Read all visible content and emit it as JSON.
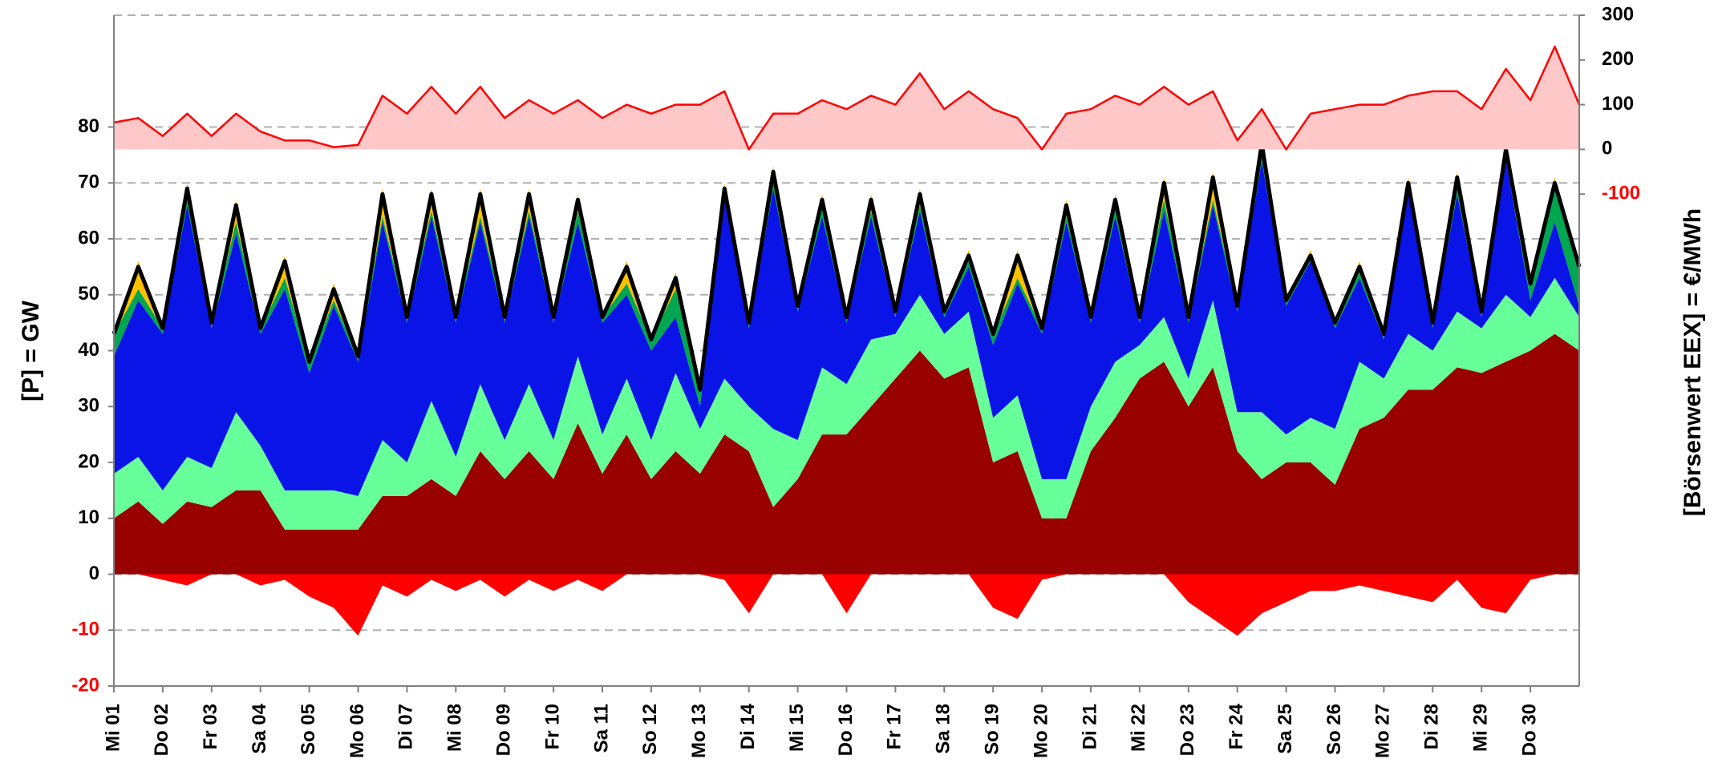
{
  "chart_data": {
    "type": "area",
    "y_axis_label": "[P]  =  GW",
    "y2_axis_label": "[Börsenwert  EEX]  =  €/MWh",
    "x": [
      0,
      0.5,
      1,
      1.5,
      2,
      2.5,
      3,
      3.5,
      4,
      4.5,
      5,
      5.5,
      6,
      6.5,
      7,
      7.5,
      8,
      8.5,
      9,
      9.5,
      10,
      10.5,
      11,
      11.5,
      12,
      12.5,
      13,
      13.5,
      14,
      14.5,
      15,
      15.5,
      16,
      16.5,
      17,
      17.5,
      18,
      18.5,
      19,
      19.5,
      20,
      20.5,
      21,
      21.5,
      22,
      22.5,
      23,
      23.5,
      24,
      24.5,
      25,
      25.5,
      26,
      26.5,
      27,
      27.5,
      28,
      28.5,
      29,
      29.5,
      30
    ],
    "xlim": [
      0,
      30
    ],
    "xticks": [
      {
        "value": 0,
        "label": "Mi 01"
      },
      {
        "value": 1,
        "label": "Do 02"
      },
      {
        "value": 2,
        "label": "Fr 03"
      },
      {
        "value": 3,
        "label": "Sa 04"
      },
      {
        "value": 4,
        "label": "So 05"
      },
      {
        "value": 5,
        "label": "Mo 06"
      },
      {
        "value": 6,
        "label": "Di 07"
      },
      {
        "value": 7,
        "label": "Mi 08"
      },
      {
        "value": 8,
        "label": "Do 09"
      },
      {
        "value": 9,
        "label": "Fr 10"
      },
      {
        "value": 10,
        "label": "Sa 11"
      },
      {
        "value": 11,
        "label": "So 12"
      },
      {
        "value": 12,
        "label": "Mo 13"
      },
      {
        "value": 13,
        "label": "Di 14"
      },
      {
        "value": 14,
        "label": "Mi 15"
      },
      {
        "value": 15,
        "label": "Do 16"
      },
      {
        "value": 16,
        "label": "Fr 17"
      },
      {
        "value": 17,
        "label": "Sa 18"
      },
      {
        "value": 18,
        "label": "So 19"
      },
      {
        "value": 19,
        "label": "Mo 20"
      },
      {
        "value": 20,
        "label": "Di 21"
      },
      {
        "value": 21,
        "label": "Mi 22"
      },
      {
        "value": 22,
        "label": "Do 23"
      },
      {
        "value": 23,
        "label": "Fr 24"
      },
      {
        "value": 24,
        "label": "Sa 25"
      },
      {
        "value": 25,
        "label": "So 26"
      },
      {
        "value": 26,
        "label": "Mo 27"
      },
      {
        "value": 27,
        "label": "Di 28"
      },
      {
        "value": 28,
        "label": "Mi 29"
      },
      {
        "value": 29,
        "label": "Do 30"
      }
    ],
    "ylim": [
      -20,
      100
    ],
    "yticks": [
      -20,
      -10,
      0,
      10,
      20,
      30,
      40,
      50,
      60,
      70,
      80
    ],
    "y2lim": [
      -1200,
      300
    ],
    "y2ticks": [
      -100,
      0,
      100,
      200,
      300
    ],
    "negative_tick_color": "#ff0000",
    "grid": true,
    "series": [
      {
        "type": "stacked_area",
        "color": "#990000",
        "values": [
          10,
          13,
          9,
          13,
          12,
          15,
          15,
          8,
          8,
          8,
          8,
          14,
          14,
          17,
          14,
          22,
          17,
          22,
          17,
          27,
          18,
          25,
          17,
          22,
          18,
          25,
          22,
          12,
          17,
          25,
          25,
          30,
          35,
          40,
          35,
          37,
          20,
          22,
          10,
          10,
          22,
          28,
          35,
          38,
          30,
          37,
          22,
          17,
          20,
          20,
          16,
          26,
          28,
          33,
          33,
          37,
          36,
          38,
          40,
          43,
          40
        ]
      },
      {
        "type": "stacked_area",
        "color": "#66ff99",
        "values": [
          8,
          8,
          6,
          8,
          7,
          14,
          8,
          7,
          7,
          7,
          6,
          10,
          6,
          14,
          7,
          12,
          7,
          12,
          7,
          12,
          7,
          10,
          7,
          14,
          8,
          10,
          8,
          14,
          7,
          12,
          9,
          12,
          8,
          10,
          8,
          10,
          8,
          10,
          7,
          7,
          8,
          10,
          6,
          8,
          5,
          12,
          7,
          12,
          5,
          8,
          10,
          12,
          7,
          10,
          7,
          10,
          8,
          12,
          6,
          10,
          6
        ]
      },
      {
        "type": "stacked_area",
        "color": "#0a14e6",
        "values": [
          21,
          28,
          28,
          45,
          25,
          32,
          20,
          36,
          21,
          33,
          24,
          39,
          25,
          33,
          24,
          29,
          21,
          30,
          21,
          24,
          20,
          15,
          16,
          10,
          4,
          32,
          14,
          43,
          23,
          27,
          11,
          22,
          3,
          15,
          3,
          8,
          13,
          20,
          26,
          46,
          15,
          26,
          4,
          19,
          10,
          17,
          18,
          45,
          23,
          28,
          18,
          15,
          7,
          26,
          4,
          21,
          2,
          24,
          3,
          10,
          2
        ]
      },
      {
        "type": "stacked_area",
        "color": "#00a650",
        "values": [
          4,
          2,
          1,
          1,
          1,
          2,
          1,
          2,
          2,
          1,
          1,
          1,
          1,
          1,
          1,
          1,
          1,
          1,
          1,
          2,
          1,
          2,
          2,
          5,
          3,
          2,
          1,
          1,
          1,
          2,
          1,
          1,
          1,
          1,
          1,
          1,
          2,
          1,
          1,
          1,
          1,
          2,
          1,
          2,
          1,
          1,
          1,
          1,
          1,
          1,
          1,
          1,
          1,
          1,
          1,
          2,
          1,
          1,
          3,
          6,
          7
        ]
      },
      {
        "type": "stacked_area",
        "color": "#ffc000",
        "values": [
          0,
          5,
          0,
          3,
          0,
          4,
          0,
          4,
          0,
          3,
          0,
          5,
          0,
          4,
          0,
          5,
          0,
          4,
          0,
          3,
          0,
          4,
          0,
          3,
          0,
          1,
          0,
          3,
          0,
          2,
          0,
          3,
          0,
          3,
          0,
          2,
          0,
          5,
          0,
          3,
          0,
          2,
          0,
          4,
          0,
          5,
          0,
          3,
          0,
          1,
          0,
          2,
          0,
          1,
          0,
          2,
          0,
          2,
          0,
          2,
          0
        ]
      },
      {
        "type": "area",
        "color": "#ff0000",
        "values": [
          0,
          0,
          -1,
          -2,
          0,
          0,
          -2,
          -1,
          -4,
          -6,
          -11,
          -2,
          -4,
          -1,
          -3,
          -1,
          -4,
          -1,
          -3,
          -1,
          -3,
          0,
          0,
          0,
          0,
          -1,
          -7,
          0,
          0,
          0,
          -7,
          0,
          0,
          0,
          0,
          0,
          -6,
          -8,
          -1,
          0,
          0,
          0,
          0,
          0,
          -5,
          -8,
          -11,
          -7,
          -5,
          -3,
          -3,
          -2,
          -3,
          -4,
          -5,
          -1,
          -6,
          -7,
          -1,
          0,
          0
        ]
      },
      {
        "type": "line",
        "color": "#000000",
        "values": [
          43,
          55,
          44,
          69,
          45,
          66,
          44,
          56,
          38,
          51,
          39,
          68,
          46,
          68,
          46,
          68,
          46,
          68,
          46,
          67,
          46,
          55,
          42,
          53,
          33,
          69,
          45,
          72,
          48,
          67,
          46,
          67,
          47,
          68,
          47,
          57,
          43,
          57,
          44,
          66,
          46,
          67,
          46,
          70,
          46,
          71,
          48,
          77,
          49,
          57,
          45,
          55,
          43,
          70,
          45,
          71,
          47,
          76,
          52,
          70,
          55
        ]
      },
      {
        "type": "line",
        "axis": "y2",
        "color": "#ff0000",
        "fill": "#ffc8c8",
        "values": [
          60,
          70,
          30,
          80,
          30,
          80,
          40,
          20,
          20,
          5,
          10,
          120,
          80,
          140,
          80,
          140,
          70,
          110,
          80,
          110,
          70,
          100,
          80,
          100,
          100,
          130,
          0,
          80,
          80,
          110,
          90,
          120,
          100,
          170,
          90,
          130,
          90,
          70,
          0,
          80,
          90,
          120,
          100,
          140,
          100,
          130,
          20,
          90,
          0,
          80,
          90,
          100,
          100,
          120,
          130,
          130,
          90,
          180,
          110,
          230,
          100
        ]
      }
    ]
  }
}
